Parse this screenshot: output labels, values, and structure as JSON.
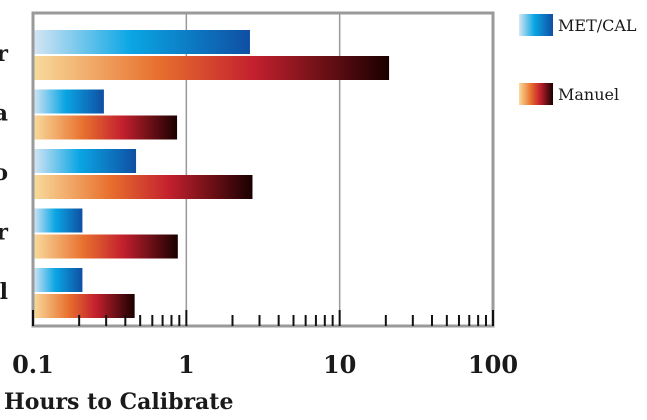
{
  "chart_data": {
    "type": "bar",
    "orientation": "horizontal",
    "title": "",
    "xlabel": "Hours to Calibrate",
    "ylabel": "",
    "x_scale": "log",
    "xlim": [
      0.1,
      100
    ],
    "x_tick_labels": [
      "0.1",
      "1",
      "10",
      "100"
    ],
    "x_ticks": [
      0.1,
      1,
      10,
      100
    ],
    "grid": "vertical lines at decades",
    "legend_placement": "top-right, outside plot",
    "categories": [
      "r",
      "a",
      "o",
      "r",
      "l"
    ],
    "series": [
      {
        "name": "MET/CAL",
        "values": [
          2.6,
          0.29,
          0.47,
          0.21,
          0.21
        ]
      },
      {
        "name": "Manuel",
        "values": [
          21,
          0.87,
          2.7,
          0.88,
          0.46
        ]
      }
    ],
    "colors": {
      "MET/CAL": [
        "#d6e6f4",
        "#0aa6e4",
        "#0f4fa3"
      ],
      "Manuel": [
        "#f8dc9c",
        "#e8702e",
        "#c3202e",
        "#1a0000"
      ],
      "axis": "#9a9a9a",
      "gridline": "#9a9a9a",
      "ticks": "#111111"
    }
  }
}
